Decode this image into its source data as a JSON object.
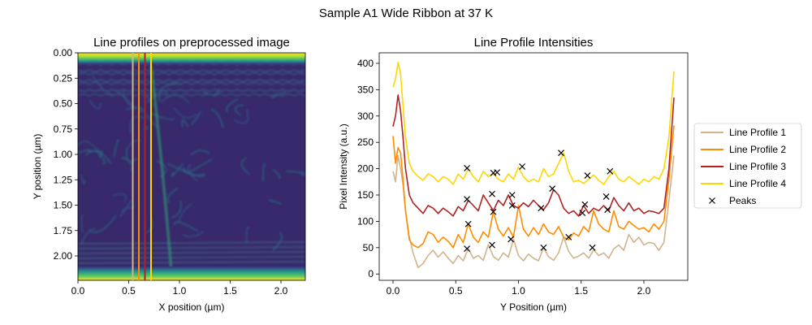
{
  "figure": {
    "suptitle": "Sample A1 Wide Ribbon at 37 K"
  },
  "chart_data": [
    {
      "type": "heatmap",
      "title": "Line profiles on preprocessed image",
      "xlabel": "X position (µm)",
      "ylabel": "Y position (µm)",
      "xlim": [
        0,
        2.24
      ],
      "ylim": [
        2.24,
        0
      ],
      "x_ticks": [
        "0.0",
        "0.5",
        "1.0",
        "1.5",
        "2.0"
      ],
      "y_ticks": [
        "0.00",
        "0.25",
        "0.50",
        "0.75",
        "1.00",
        "1.25",
        "1.50",
        "1.75",
        "2.00"
      ],
      "colormap": "viridis",
      "vertical_lines": [
        {
          "x": 0.54,
          "color": "#d2b48c"
        },
        {
          "x": 0.6,
          "color": "#ff8c00"
        },
        {
          "x": 0.66,
          "color": "#b22222"
        },
        {
          "x": 0.72,
          "color": "#ffd700"
        }
      ]
    },
    {
      "type": "line",
      "title": "Line Profile Intensities",
      "xlabel": "Y Position (µm)",
      "ylabel": "Pixel Intensity (a.u.)",
      "xlim": [
        -0.11,
        2.35
      ],
      "ylim": [
        -12,
        420
      ],
      "x_ticks": [
        "0.0",
        "0.5",
        "1.0",
        "1.5",
        "2.0"
      ],
      "y_ticks": [
        "0",
        "50",
        "100",
        "150",
        "200",
        "250",
        "300",
        "350",
        "400"
      ],
      "legend_position": "outside-right",
      "series": [
        {
          "name": "Line Profile 1",
          "color": "#d2b48c",
          "x": [
            0.0,
            0.02,
            0.04,
            0.06,
            0.08,
            0.1,
            0.13,
            0.16,
            0.2,
            0.24,
            0.28,
            0.32,
            0.36,
            0.4,
            0.44,
            0.48,
            0.52,
            0.56,
            0.6,
            0.64,
            0.68,
            0.72,
            0.76,
            0.8,
            0.84,
            0.88,
            0.92,
            0.96,
            1.0,
            1.04,
            1.08,
            1.12,
            1.16,
            1.2,
            1.24,
            1.28,
            1.32,
            1.36,
            1.4,
            1.44,
            1.48,
            1.52,
            1.56,
            1.6,
            1.64,
            1.68,
            1.72,
            1.76,
            1.8,
            1.84,
            1.88,
            1.92,
            1.96,
            2.0,
            2.04,
            2.08,
            2.12,
            2.16,
            2.2,
            2.24
          ],
          "y": [
            195,
            175,
            225,
            200,
            170,
            120,
            70,
            40,
            12,
            20,
            35,
            45,
            32,
            42,
            30,
            20,
            35,
            25,
            48,
            30,
            35,
            26,
            56,
            33,
            26,
            40,
            32,
            66,
            35,
            25,
            38,
            30,
            25,
            50,
            33,
            26,
            40,
            70,
            43,
            30,
            34,
            40,
            30,
            46,
            35,
            40,
            30,
            48,
            55,
            45,
            75,
            60,
            70,
            55,
            60,
            58,
            45,
            60,
            140,
            225
          ]
        },
        {
          "name": "Line Profile 2",
          "color": "#ff8c00",
          "x": [
            0.0,
            0.02,
            0.04,
            0.06,
            0.08,
            0.1,
            0.13,
            0.16,
            0.2,
            0.24,
            0.28,
            0.32,
            0.36,
            0.4,
            0.44,
            0.48,
            0.52,
            0.56,
            0.6,
            0.64,
            0.68,
            0.72,
            0.76,
            0.8,
            0.84,
            0.88,
            0.92,
            0.96,
            1.0,
            1.04,
            1.08,
            1.12,
            1.16,
            1.2,
            1.24,
            1.28,
            1.32,
            1.36,
            1.4,
            1.44,
            1.48,
            1.52,
            1.56,
            1.6,
            1.64,
            1.68,
            1.72,
            1.76,
            1.8,
            1.84,
            1.88,
            1.92,
            1.96,
            2.0,
            2.04,
            2.08,
            2.12,
            2.16,
            2.2,
            2.24
          ],
          "y": [
            262,
            210,
            240,
            230,
            180,
            120,
            65,
            55,
            50,
            58,
            80,
            75,
            60,
            70,
            62,
            50,
            75,
            60,
            95,
            70,
            60,
            80,
            70,
            118,
            85,
            72,
            88,
            70,
            130,
            85,
            72,
            88,
            75,
            95,
            80,
            75,
            90,
            70,
            65,
            78,
            72,
            90,
            80,
            120,
            95,
            85,
            80,
            120,
            90,
            85,
            100,
            92,
            85,
            88,
            80,
            95,
            85,
            100,
            180,
            282
          ]
        },
        {
          "name": "Line Profile 3",
          "color": "#b22222",
          "x": [
            0.0,
            0.02,
            0.04,
            0.06,
            0.08,
            0.1,
            0.13,
            0.16,
            0.2,
            0.24,
            0.28,
            0.32,
            0.36,
            0.4,
            0.44,
            0.48,
            0.52,
            0.56,
            0.6,
            0.64,
            0.68,
            0.72,
            0.76,
            0.8,
            0.84,
            0.88,
            0.92,
            0.96,
            1.0,
            1.04,
            1.08,
            1.12,
            1.16,
            1.2,
            1.24,
            1.28,
            1.32,
            1.36,
            1.4,
            1.44,
            1.48,
            1.52,
            1.56,
            1.6,
            1.64,
            1.68,
            1.72,
            1.76,
            1.8,
            1.84,
            1.88,
            1.92,
            1.96,
            2.0,
            2.04,
            2.08,
            2.12,
            2.16,
            2.2,
            2.24
          ],
          "y": [
            280,
            300,
            340,
            310,
            260,
            200,
            150,
            135,
            125,
            115,
            130,
            125,
            115,
            125,
            118,
            110,
            128,
            120,
            140,
            130,
            120,
            150,
            135,
            120,
            140,
            130,
            150,
            130,
            125,
            135,
            128,
            140,
            130,
            122,
            135,
            160,
            150,
            125,
            115,
            120,
            110,
            130,
            115,
            125,
            120,
            130,
            120,
            145,
            130,
            120,
            135,
            120,
            125,
            115,
            120,
            118,
            115,
            125,
            200,
            335
          ]
        },
        {
          "name": "Line Profile 4",
          "color": "#ffd700",
          "x": [
            0.0,
            0.02,
            0.04,
            0.06,
            0.08,
            0.1,
            0.13,
            0.16,
            0.2,
            0.24,
            0.28,
            0.32,
            0.36,
            0.4,
            0.44,
            0.48,
            0.52,
            0.56,
            0.6,
            0.64,
            0.68,
            0.72,
            0.76,
            0.8,
            0.84,
            0.88,
            0.92,
            0.96,
            1.0,
            1.04,
            1.08,
            1.12,
            1.16,
            1.2,
            1.24,
            1.28,
            1.32,
            1.36,
            1.4,
            1.44,
            1.48,
            1.52,
            1.56,
            1.6,
            1.64,
            1.68,
            1.72,
            1.76,
            1.8,
            1.84,
            1.88,
            1.92,
            1.96,
            2.0,
            2.04,
            2.08,
            2.12,
            2.16,
            2.2,
            2.24
          ],
          "y": [
            355,
            370,
            402,
            380,
            320,
            260,
            210,
            195,
            185,
            178,
            190,
            185,
            175,
            185,
            180,
            170,
            190,
            180,
            200,
            185,
            175,
            195,
            185,
            190,
            180,
            175,
            190,
            180,
            203,
            185,
            175,
            180,
            175,
            200,
            185,
            190,
            210,
            230,
            195,
            175,
            178,
            172,
            180,
            188,
            178,
            170,
            185,
            195,
            180,
            175,
            185,
            178,
            170,
            180,
            175,
            185,
            180,
            200,
            260,
            385
          ]
        }
      ],
      "peaks": {
        "name": "Peaks",
        "marker": "x",
        "points": [
          {
            "x": 0.59,
            "y": 48
          },
          {
            "x": 0.79,
            "y": 55
          },
          {
            "x": 0.94,
            "y": 66
          },
          {
            "x": 1.2,
            "y": 50
          },
          {
            "x": 1.4,
            "y": 70
          },
          {
            "x": 1.59,
            "y": 50
          },
          {
            "x": 0.6,
            "y": 95
          },
          {
            "x": 0.8,
            "y": 118
          },
          {
            "x": 0.95,
            "y": 130
          },
          {
            "x": 1.18,
            "y": 125
          },
          {
            "x": 1.51,
            "y": 116
          },
          {
            "x": 1.71,
            "y": 122
          },
          {
            "x": 0.59,
            "y": 142
          },
          {
            "x": 0.79,
            "y": 152
          },
          {
            "x": 0.95,
            "y": 150
          },
          {
            "x": 1.27,
            "y": 162
          },
          {
            "x": 1.53,
            "y": 132
          },
          {
            "x": 1.7,
            "y": 147
          },
          {
            "x": 0.59,
            "y": 201
          },
          {
            "x": 0.8,
            "y": 192
          },
          {
            "x": 0.83,
            "y": 193
          },
          {
            "x": 1.03,
            "y": 204
          },
          {
            "x": 1.34,
            "y": 230
          },
          {
            "x": 1.55,
            "y": 187
          },
          {
            "x": 1.73,
            "y": 195
          }
        ]
      }
    }
  ]
}
